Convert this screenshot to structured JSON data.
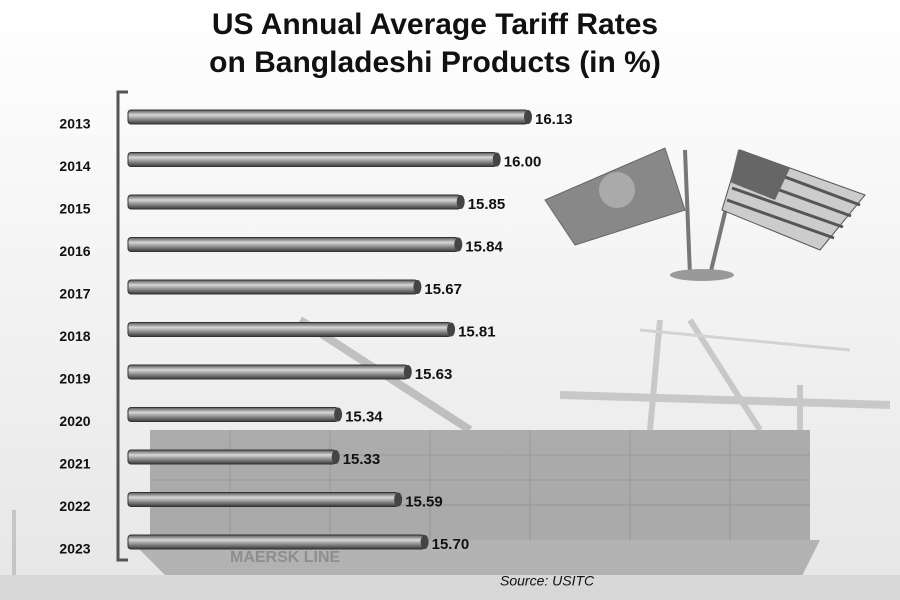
{
  "chart_data": {
    "type": "bar",
    "orientation": "horizontal",
    "title": "US Annual Average Tariff Rates on Bangladeshi Products (in %)",
    "categories": [
      "2013",
      "2014",
      "2015",
      "2016",
      "2017",
      "2018",
      "2019",
      "2020",
      "2021",
      "2022",
      "2023"
    ],
    "values": [
      16.13,
      16.0,
      15.85,
      15.84,
      15.67,
      15.81,
      15.63,
      15.34,
      15.33,
      15.59,
      15.7
    ],
    "value_labels": [
      "16.13",
      "16.00",
      "15.85",
      "15.84",
      "15.67",
      "15.81",
      "15.63",
      "15.34",
      "15.33",
      "15.59",
      "15.70"
    ],
    "color": "#7a7a7a",
    "source": "Source: USITC"
  }
}
